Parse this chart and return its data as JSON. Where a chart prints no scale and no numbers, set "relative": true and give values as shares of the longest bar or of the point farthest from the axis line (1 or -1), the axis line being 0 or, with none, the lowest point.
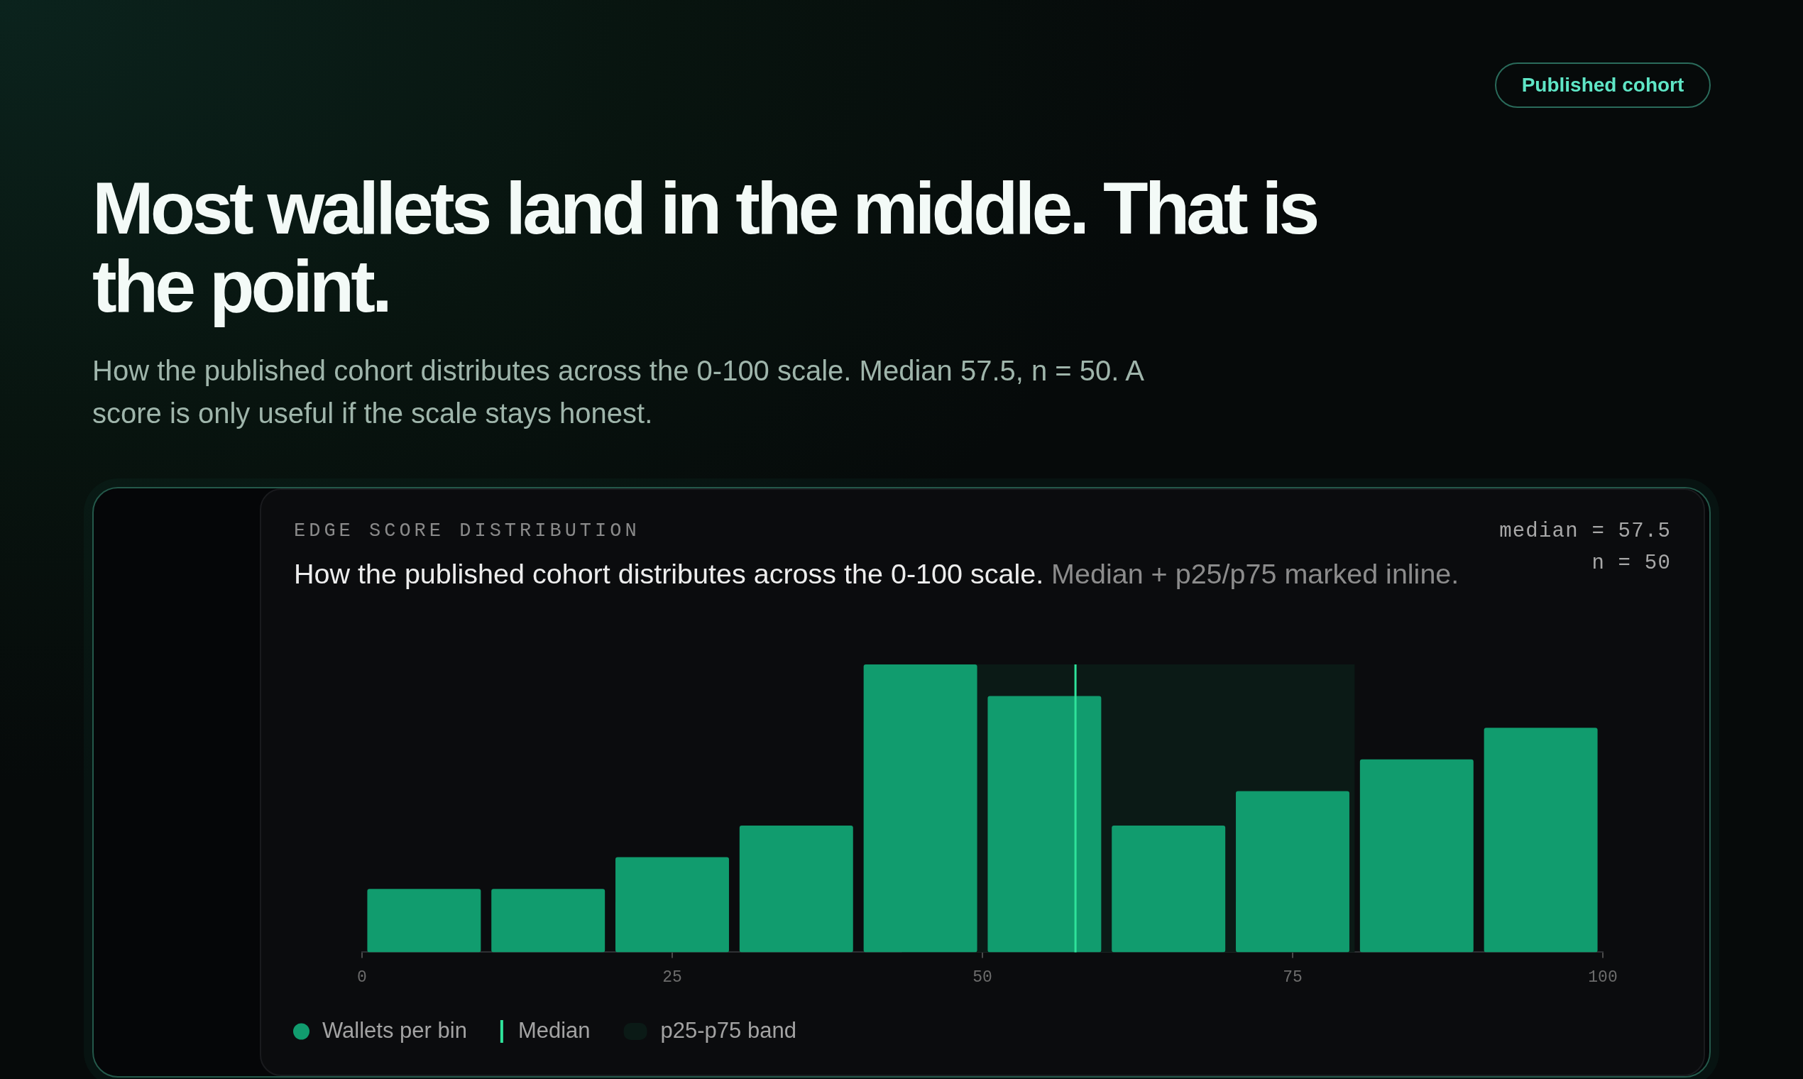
{
  "chart_data": {
    "type": "bar",
    "title": "Most wallets land in the middle. That is the point.",
    "subtitle": "How the published cohort distributes across the 0-100 scale. Median 57.5, n = 50. A score is only useful if the scale stays honest.",
    "annotations": [
      "Published cohort",
      "EDGE SCORE DISTRIBUTION",
      "How the published cohort distributes across the 0-100 scale.",
      "Median + p25/p75 marked inline.",
      "median = 57.5",
      "n = 50"
    ],
    "x": [
      5,
      15,
      25,
      35,
      45,
      55,
      65,
      75,
      85,
      95
    ],
    "series": [
      {
        "name": "Wallets per bin",
        "color": "#119c6e",
        "values": [
          0.22,
          0.22,
          0.33,
          0.44,
          1,
          0.89,
          0.44,
          0.56,
          0.67,
          0.78
        ]
      }
    ],
    "relative": true,
    "xlim": [
      0,
      100
    ],
    "xticks": [
      0,
      25,
      50,
      75,
      100
    ],
    "ref_lines": [
      {
        "axis": "x",
        "value": 57.5,
        "label": "Median",
        "color": "#2fe39b"
      }
    ],
    "bands": [
      {
        "axis": "x",
        "from": 43.5,
        "to": 80,
        "label": "p25-p75 band",
        "color": "#0b1a16"
      }
    ],
    "legend": "bottom left"
  }
}
